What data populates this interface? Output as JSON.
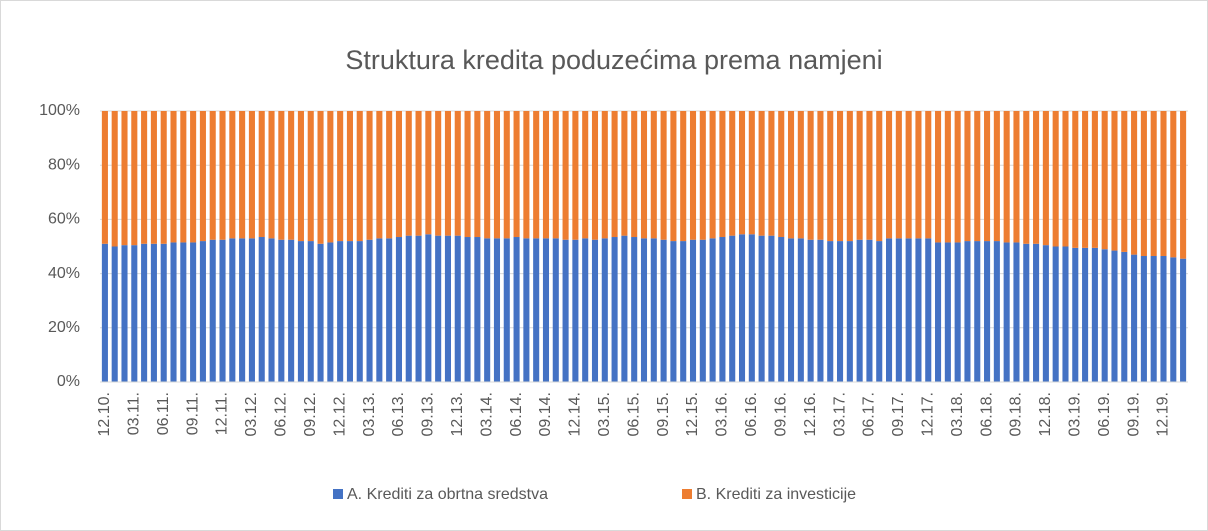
{
  "chart_data": {
    "type": "stacked_bar",
    "title": "Struktura kredita poduzećima prema namjeni",
    "categories": [
      "12.10.",
      null,
      null,
      "03.11.",
      null,
      null,
      "06.11.",
      null,
      null,
      "09.11.",
      null,
      null,
      "12.11.",
      null,
      null,
      "03.12.",
      null,
      null,
      "06.12.",
      null,
      null,
      "09.12.",
      null,
      null,
      "12.12.",
      null,
      null,
      "03.13.",
      null,
      null,
      "06.13.",
      null,
      null,
      "09.13.",
      null,
      null,
      "12.13.",
      null,
      null,
      "03.14.",
      null,
      null,
      "06.14.",
      null,
      null,
      "09.14.",
      null,
      null,
      "12.14.",
      null,
      null,
      "03.15.",
      null,
      null,
      "06.15.",
      null,
      null,
      "09.15.",
      null,
      null,
      "12.15.",
      null,
      null,
      "03.16.",
      null,
      null,
      "06.16.",
      null,
      null,
      "09.16.",
      null,
      null,
      "12.16.",
      null,
      null,
      "03.17.",
      null,
      null,
      "06.17.",
      null,
      null,
      "09.17.",
      null,
      null,
      "12.17.",
      null,
      null,
      "03.18.",
      null,
      null,
      "06.18.",
      null,
      null,
      "09.18.",
      null,
      null,
      "12.18.",
      null,
      null,
      "03.19.",
      null,
      null,
      "06.19.",
      null,
      null,
      "09.19.",
      null,
      null,
      "12.19.",
      null,
      null
    ],
    "series": [
      {
        "name": "A. Krediti za obrtna sredstva",
        "color": "#4472c4",
        "values": [
          51,
          50,
          50.5,
          50.5,
          51,
          51,
          51,
          51.5,
          51.5,
          51.5,
          52,
          52.5,
          52.5,
          53,
          53,
          53,
          53.5,
          53,
          52.5,
          52.5,
          52,
          52,
          51,
          51.5,
          52,
          52,
          52,
          52.5,
          53,
          53,
          53.5,
          54,
          54,
          54.5,
          54,
          54,
          54,
          53.5,
          53.5,
          53,
          53,
          53,
          53.5,
          53,
          53,
          53,
          53,
          52.5,
          52.5,
          53,
          52.5,
          53,
          53.5,
          54,
          53.5,
          53,
          53,
          52.5,
          52,
          52,
          52.5,
          52.5,
          53,
          53.5,
          54,
          54.5,
          54.5,
          54,
          54,
          53.5,
          53,
          53,
          52.5,
          52.5,
          52,
          52,
          52,
          52.5,
          52.5,
          52,
          53,
          53,
          53,
          53,
          53,
          51.5,
          51.5,
          51.5,
          52,
          52,
          52,
          52,
          51.5,
          51.5,
          51,
          51,
          50.5,
          50,
          50,
          49.5,
          49.5,
          49.5,
          49,
          48.5,
          48,
          47,
          46.5,
          46.5,
          46.5,
          46,
          45.5
        ]
      },
      {
        "name": "B. Krediti za investicije",
        "color": "#ed7d31",
        "values": [
          49,
          50,
          49.5,
          49.5,
          49,
          49,
          49,
          48.5,
          48.5,
          48.5,
          48,
          47.5,
          47.5,
          47,
          47,
          47,
          46.5,
          47,
          47.5,
          47.5,
          48,
          48,
          49,
          48.5,
          48,
          48,
          48,
          47.5,
          47,
          47,
          46.5,
          46,
          46,
          45.5,
          46,
          46,
          46,
          46.5,
          46.5,
          47,
          47,
          47,
          46.5,
          47,
          47,
          47,
          47,
          47.5,
          47.5,
          47,
          47.5,
          47,
          46.5,
          46,
          46.5,
          47,
          47,
          47.5,
          48,
          48,
          47.5,
          47.5,
          47,
          46.5,
          46,
          45.5,
          45.5,
          46,
          46,
          46.5,
          47,
          47,
          47.5,
          47.5,
          48,
          48,
          48,
          47.5,
          47.5,
          48,
          47,
          47,
          47,
          47,
          47,
          48.5,
          48.5,
          48.5,
          48,
          48,
          48,
          48,
          48.5,
          48.5,
          49,
          49,
          49.5,
          50,
          50,
          50.5,
          50.5,
          50.5,
          51,
          51.5,
          52,
          53,
          53.5,
          53.5,
          53.5,
          54,
          54.5
        ]
      }
    ],
    "ylim": [
      0,
      100
    ],
    "yticks": [
      {
        "value": 0,
        "label": "0%"
      },
      {
        "value": 20,
        "label": "20%"
      },
      {
        "value": 40,
        "label": "40%"
      },
      {
        "value": 60,
        "label": "60%"
      },
      {
        "value": 80,
        "label": "80%"
      },
      {
        "value": 100,
        "label": "100%"
      }
    ],
    "grid": true,
    "legend": "bottom"
  }
}
